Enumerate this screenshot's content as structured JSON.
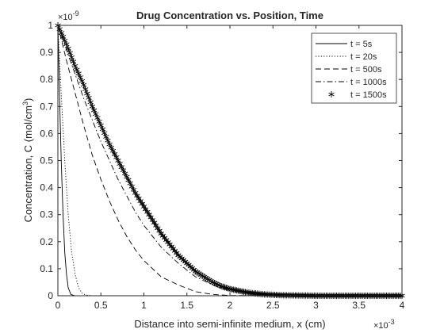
{
  "chart_data": {
    "type": "line",
    "title": "Drug Concentration vs. Position, Time",
    "xlabel": "Distance into semi-infinite medium, x (cm)",
    "ylabel_main": "Concentration, C (mol/cm",
    "ylabel_sup": "3",
    "ylabel_close": ")",
    "x_exponent": {
      "base": "×10",
      "power": "-3"
    },
    "y_exponent": {
      "base": "×10",
      "power": "-9"
    },
    "xlim": [
      0,
      4
    ],
    "ylim": [
      0,
      1
    ],
    "x_ticks": [
      0,
      0.5,
      1,
      1.5,
      2,
      2.5,
      3,
      3.5,
      4
    ],
    "x_tick_labels": [
      "0",
      "0.5",
      "1",
      "1.5",
      "2",
      "2.5",
      "3",
      "3.5",
      "4"
    ],
    "y_ticks": [
      0,
      0.1,
      0.2,
      0.3,
      0.4,
      0.5,
      0.6,
      0.7,
      0.8,
      0.9,
      1
    ],
    "y_tick_labels": [
      "0",
      "0.1",
      "0.2",
      "0.3",
      "0.4",
      "0.5",
      "0.6",
      "0.7",
      "0.8",
      "0.9",
      "1"
    ],
    "grid": false,
    "legend_position": "top-right",
    "series": [
      {
        "name": "t = 5s",
        "style": "solid",
        "x": [
          0,
          0.02,
          0.04,
          0.06,
          0.08,
          0.1,
          0.12,
          0.15,
          0.2,
          4
        ],
        "y": [
          1,
          0.73,
          0.49,
          0.3,
          0.16,
          0.08,
          0.03,
          0.005,
          0,
          0
        ]
      },
      {
        "name": "t = 20s",
        "style": "dotted",
        "x": [
          0,
          0.04,
          0.08,
          0.12,
          0.16,
          0.2,
          0.24,
          0.28,
          0.32,
          0.4,
          4
        ],
        "y": [
          1,
          0.74,
          0.5,
          0.3,
          0.16,
          0.08,
          0.03,
          0.01,
          0.003,
          0,
          0
        ]
      },
      {
        "name": "t = 500s",
        "style": "dashed",
        "x": [
          0,
          0.1,
          0.2,
          0.3,
          0.4,
          0.5,
          0.6,
          0.7,
          0.8,
          0.9,
          1.0,
          1.2,
          1.4,
          1.6,
          1.8,
          2.0,
          4
        ],
        "y": [
          1,
          0.87,
          0.75,
          0.63,
          0.52,
          0.43,
          0.35,
          0.28,
          0.22,
          0.17,
          0.13,
          0.07,
          0.04,
          0.015,
          0.005,
          0.001,
          0
        ]
      },
      {
        "name": "t = 1000s",
        "style": "dashdot",
        "x": [
          0,
          0.1,
          0.2,
          0.3,
          0.4,
          0.5,
          0.6,
          0.7,
          0.8,
          0.9,
          1.0,
          1.2,
          1.4,
          1.6,
          1.8,
          2.0,
          2.2,
          2.5,
          4
        ],
        "y": [
          1,
          0.91,
          0.82,
          0.73,
          0.65,
          0.57,
          0.5,
          0.43,
          0.37,
          0.31,
          0.26,
          0.18,
          0.12,
          0.07,
          0.04,
          0.02,
          0.01,
          0.002,
          0
        ]
      },
      {
        "name": "t = 1500s",
        "style": "asterisk",
        "x": [
          0,
          0.1,
          0.2,
          0.3,
          0.4,
          0.5,
          0.6,
          0.7,
          0.8,
          0.9,
          1.0,
          1.1,
          1.2,
          1.3,
          1.4,
          1.5,
          1.6,
          1.7,
          1.8,
          1.9,
          2.0,
          2.2,
          2.4,
          2.6,
          2.8,
          3.0,
          4
        ],
        "y": [
          1,
          0.93,
          0.85,
          0.78,
          0.7,
          0.63,
          0.56,
          0.5,
          0.44,
          0.38,
          0.33,
          0.28,
          0.23,
          0.19,
          0.15,
          0.12,
          0.09,
          0.07,
          0.05,
          0.035,
          0.025,
          0.012,
          0.005,
          0.002,
          0.001,
          0,
          0
        ]
      }
    ]
  }
}
